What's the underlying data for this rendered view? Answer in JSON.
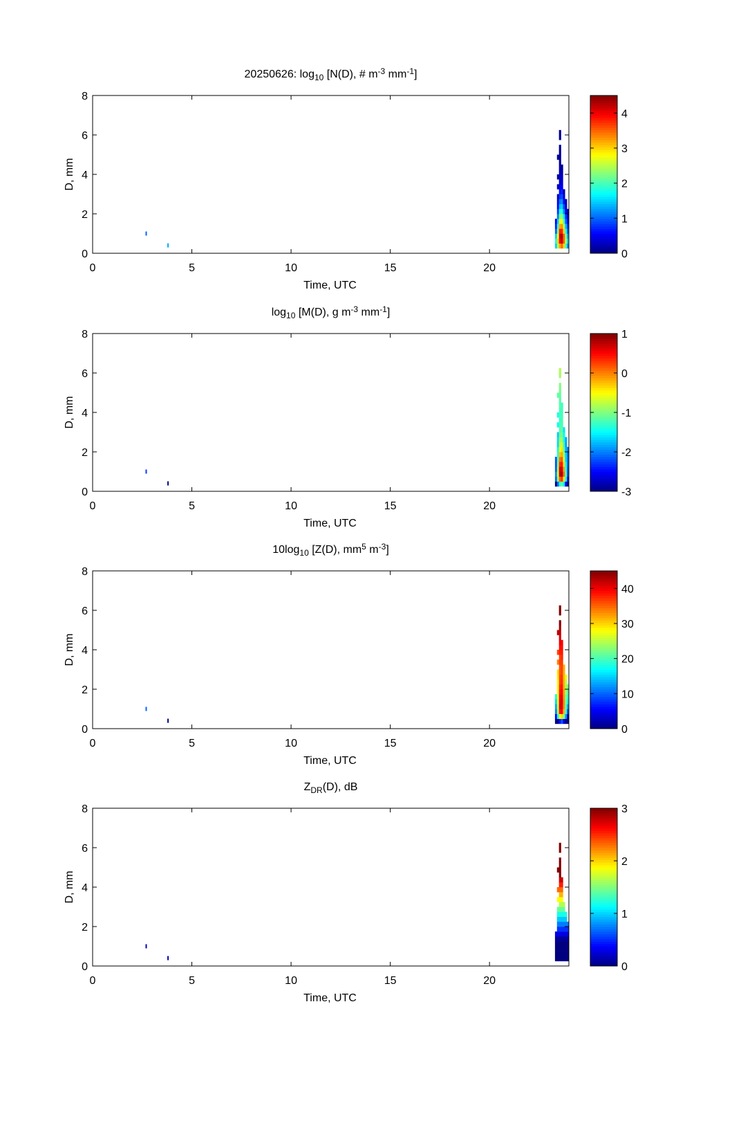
{
  "chart_data": {
    "type": "heatmap",
    "date": "20250626",
    "x": {
      "label": "Time, UTC",
      "lim": [
        0,
        24
      ],
      "ticks": [
        0,
        5,
        10,
        15,
        20
      ]
    },
    "y": {
      "label": "D, mm",
      "lim": [
        0,
        8
      ],
      "ticks": [
        0,
        2,
        4,
        6,
        8
      ]
    },
    "grid": false,
    "colormap": "jet",
    "times": [
      23.35,
      23.45,
      23.55,
      23.65,
      23.75,
      23.85,
      23.95
    ],
    "time_bin": 0.1,
    "diameters": [
      0.375,
      0.625,
      0.875,
      1.125,
      1.375,
      1.625,
      1.875,
      2.125,
      2.375,
      2.625,
      2.875,
      3.125,
      3.375,
      3.625,
      3.875,
      4.125,
      4.375,
      4.625,
      4.875,
      5.125,
      5.375,
      5.625,
      5.875,
      6.125
    ],
    "diameter_bin": 0.25,
    "log10_N": [
      [
        1.5,
        2.5,
        3.2,
        3.5,
        3.0,
        2.0,
        1.2
      ],
      [
        1.8,
        3.0,
        4.0,
        4.2,
        3.5,
        2.5,
        1.5
      ],
      [
        1.5,
        2.8,
        4.2,
        4.3,
        3.5,
        2.3,
        1.3
      ],
      [
        1.0,
        2.3,
        3.8,
        3.8,
        3.0,
        1.8,
        1.0
      ],
      [
        0.7,
        1.9,
        3.2,
        3.3,
        2.5,
        1.4,
        0.8
      ],
      [
        0.5,
        1.5,
        2.7,
        2.8,
        2.0,
        1.0,
        0.6
      ],
      [
        null,
        1.1,
        2.2,
        2.3,
        1.6,
        0.8,
        0.4
      ],
      [
        null,
        0.8,
        1.8,
        1.9,
        1.2,
        0.5,
        0.3
      ],
      [
        null,
        0.5,
        1.4,
        1.5,
        0.9,
        0.3,
        null
      ],
      [
        null,
        0.4,
        1.1,
        1.2,
        0.6,
        0.2,
        null
      ],
      [
        null,
        0.2,
        0.8,
        0.9,
        0.4,
        null,
        null
      ],
      [
        null,
        null,
        0.6,
        0.7,
        0.2,
        null,
        null
      ],
      [
        null,
        0.2,
        0.5,
        0.5,
        null,
        null,
        null
      ],
      [
        null,
        null,
        0.3,
        0.4,
        null,
        null,
        null
      ],
      [
        null,
        0.1,
        0.3,
        0.3,
        null,
        null,
        null
      ],
      [
        null,
        null,
        0.2,
        0.2,
        null,
        null,
        null
      ],
      [
        null,
        null,
        0.2,
        0.1,
        null,
        null,
        null
      ],
      [
        null,
        null,
        0.1,
        null,
        null,
        null,
        null
      ],
      [
        null,
        0.1,
        0.1,
        null,
        null,
        null,
        null
      ],
      [
        null,
        null,
        0.1,
        null,
        null,
        null,
        null
      ],
      [
        null,
        null,
        0.1,
        null,
        null,
        null,
        null
      ],
      [
        null,
        null,
        null,
        null,
        null,
        null,
        null
      ],
      [
        null,
        null,
        0.1,
        null,
        null,
        null,
        null
      ],
      [
        null,
        null,
        0.1,
        null,
        null,
        null,
        null
      ]
    ],
    "isolated_points": [
      {
        "time": 2.7,
        "D": 1.0,
        "log10_N": 1.0
      },
      {
        "time": 3.8,
        "D": 0.4,
        "log10_N": 1.3
      }
    ],
    "panels": [
      {
        "id": "N",
        "title": [
          {
            "t": "20250626: log",
            "s": ""
          },
          {
            "t": "10",
            "s": "sub"
          },
          {
            "t": " [N(D), # m",
            "s": ""
          },
          {
            "t": "-3",
            "s": "sup"
          },
          {
            "t": " mm",
            "s": ""
          },
          {
            "t": "-1",
            "s": "sup"
          },
          {
            "t": "]",
            "s": ""
          }
        ],
        "clim": [
          0,
          4.5
        ],
        "cticks": [
          0,
          1,
          2,
          3,
          4
        ]
      },
      {
        "id": "M",
        "title": [
          {
            "t": "log",
            "s": ""
          },
          {
            "t": "10",
            "s": "sub"
          },
          {
            "t": " [M(D), g m",
            "s": ""
          },
          {
            "t": "-3",
            "s": "sup"
          },
          {
            "t": " mm",
            "s": ""
          },
          {
            "t": "-1",
            "s": "sup"
          },
          {
            "t": "]",
            "s": ""
          }
        ],
        "clim": [
          -3,
          1
        ],
        "cticks": [
          -3,
          -2,
          -1,
          0,
          1
        ]
      },
      {
        "id": "Z",
        "title": [
          {
            "t": "10log",
            "s": ""
          },
          {
            "t": "10",
            "s": "sub"
          },
          {
            "t": " [Z(D),  mm",
            "s": ""
          },
          {
            "t": "5",
            "s": "sup"
          },
          {
            "t": " m",
            "s": ""
          },
          {
            "t": "-3",
            "s": "sup"
          },
          {
            "t": "]",
            "s": ""
          }
        ],
        "clim": [
          0,
          45
        ],
        "cticks": [
          0,
          10,
          20,
          30,
          40
        ]
      },
      {
        "id": "ZDR",
        "title": [
          {
            "t": "Z",
            "s": ""
          },
          {
            "t": "DR",
            "s": "sub"
          },
          {
            "t": "(D), dB",
            "s": ""
          }
        ],
        "clim": [
          0,
          3
        ],
        "cticks": [
          0,
          1,
          2,
          3
        ]
      }
    ]
  }
}
